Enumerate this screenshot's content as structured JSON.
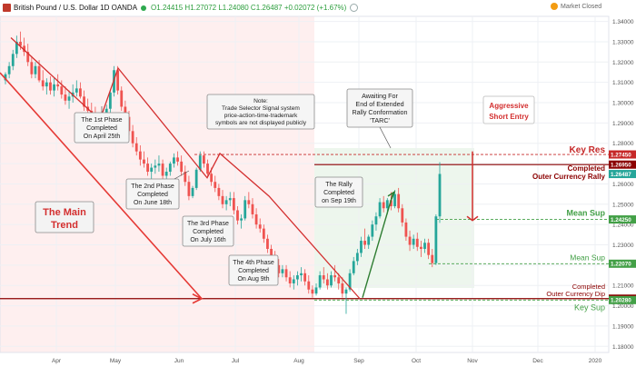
{
  "header": {
    "symbol": "British Pound / U.S. Dollar  1D  OANDA",
    "ohlc": "O1.24415  H1.27072  L1.24080  C1.26487  +0.02072 (+1.67%)",
    "market_status": "Market Closed"
  },
  "colors": {
    "bull": "#26a69a",
    "bear": "#ef5350",
    "trend_line": "#e53935",
    "support_green": "#43a047",
    "resistance_red": "#c62828",
    "dark_red": "#8b0000"
  },
  "chart_data": {
    "type": "candlestick",
    "x_tick_labels": [
      "Apr",
      "May",
      "Jun",
      "Jul",
      "Aug",
      "Sep",
      "Oct",
      "Nov",
      "Dec",
      "2020"
    ],
    "y_ticks": [
      "1.34000",
      "1.33000",
      "1.32000",
      "1.31000",
      "1.30000",
      "1.29000",
      "1.28000",
      "1.27000",
      "1.26000",
      "1.25000",
      "1.24000",
      "1.23000",
      "1.22000",
      "1.21000",
      "1.20000",
      "1.19000",
      "1.18000"
    ],
    "ylim": [
      1.177,
      1.3425
    ],
    "ohlc": [
      [
        1.311,
        1.315,
        1.309,
        1.314
      ],
      [
        1.314,
        1.32,
        1.312,
        1.318
      ],
      [
        1.318,
        1.326,
        1.316,
        1.324
      ],
      [
        1.324,
        1.333,
        1.322,
        1.33
      ],
      [
        1.33,
        1.335,
        1.326,
        1.328
      ],
      [
        1.328,
        1.332,
        1.323,
        1.325
      ],
      [
        1.325,
        1.329,
        1.318,
        1.32
      ],
      [
        1.32,
        1.323,
        1.312,
        1.314
      ],
      [
        1.314,
        1.32,
        1.312,
        1.318
      ],
      [
        1.318,
        1.321,
        1.31,
        1.311
      ],
      [
        1.311,
        1.316,
        1.306,
        1.308
      ],
      [
        1.308,
        1.312,
        1.304,
        1.31
      ],
      [
        1.31,
        1.313,
        1.304,
        1.306
      ],
      [
        1.306,
        1.312,
        1.303,
        1.309
      ],
      [
        1.309,
        1.314,
        1.306,
        1.308
      ],
      [
        1.308,
        1.311,
        1.302,
        1.304
      ],
      [
        1.304,
        1.308,
        1.299,
        1.301
      ],
      [
        1.301,
        1.306,
        1.297,
        1.303
      ],
      [
        1.303,
        1.309,
        1.3,
        1.305
      ],
      [
        1.305,
        1.311,
        1.303,
        1.307
      ],
      [
        1.307,
        1.31,
        1.302,
        1.303
      ],
      [
        1.303,
        1.306,
        1.296,
        1.298
      ],
      [
        1.298,
        1.302,
        1.294,
        1.296
      ],
      [
        1.296,
        1.3,
        1.291,
        1.293
      ],
      [
        1.293,
        1.298,
        1.289,
        1.29
      ],
      [
        1.29,
        1.295,
        1.286,
        1.288
      ],
      [
        1.288,
        1.293,
        1.286,
        1.291
      ],
      [
        1.291,
        1.299,
        1.289,
        1.297
      ],
      [
        1.297,
        1.306,
        1.295,
        1.305
      ],
      [
        1.305,
        1.318,
        1.303,
        1.316
      ],
      [
        1.316,
        1.318,
        1.304,
        1.306
      ],
      [
        1.306,
        1.308,
        1.296,
        1.298
      ],
      [
        1.298,
        1.301,
        1.29,
        1.293
      ],
      [
        1.293,
        1.296,
        1.284,
        1.286
      ],
      [
        1.286,
        1.289,
        1.278,
        1.28
      ],
      [
        1.28,
        1.283,
        1.274,
        1.276
      ],
      [
        1.276,
        1.279,
        1.269,
        1.272
      ],
      [
        1.272,
        1.276,
        1.268,
        1.27
      ],
      [
        1.27,
        1.273,
        1.264,
        1.266
      ],
      [
        1.266,
        1.27,
        1.262,
        1.268
      ],
      [
        1.268,
        1.272,
        1.265,
        1.269
      ],
      [
        1.269,
        1.274,
        1.266,
        1.27
      ],
      [
        1.27,
        1.272,
        1.262,
        1.264
      ],
      [
        1.264,
        1.268,
        1.26,
        1.266
      ],
      [
        1.266,
        1.271,
        1.264,
        1.27
      ],
      [
        1.27,
        1.275,
        1.268,
        1.273
      ],
      [
        1.273,
        1.276,
        1.269,
        1.271
      ],
      [
        1.271,
        1.274,
        1.264,
        1.266
      ],
      [
        1.266,
        1.269,
        1.259,
        1.261
      ],
      [
        1.261,
        1.264,
        1.252,
        1.254
      ],
      [
        1.254,
        1.259,
        1.253,
        1.258
      ],
      [
        1.258,
        1.268,
        1.257,
        1.267
      ],
      [
        1.267,
        1.276,
        1.266,
        1.274
      ],
      [
        1.274,
        1.276,
        1.268,
        1.27
      ],
      [
        1.27,
        1.272,
        1.264,
        1.265
      ],
      [
        1.265,
        1.268,
        1.259,
        1.261
      ],
      [
        1.261,
        1.264,
        1.256,
        1.258
      ],
      [
        1.258,
        1.26,
        1.252,
        1.254
      ],
      [
        1.254,
        1.257,
        1.248,
        1.25
      ],
      [
        1.25,
        1.254,
        1.247,
        1.252
      ],
      [
        1.252,
        1.256,
        1.249,
        1.253
      ],
      [
        1.253,
        1.256,
        1.245,
        1.247
      ],
      [
        1.247,
        1.249,
        1.24,
        1.242
      ],
      [
        1.242,
        1.245,
        1.238,
        1.243
      ],
      [
        1.243,
        1.254,
        1.242,
        1.252
      ],
      [
        1.252,
        1.256,
        1.248,
        1.25
      ],
      [
        1.25,
        1.253,
        1.243,
        1.245
      ],
      [
        1.245,
        1.248,
        1.238,
        1.24
      ],
      [
        1.24,
        1.243,
        1.236,
        1.238
      ],
      [
        1.238,
        1.24,
        1.231,
        1.233
      ],
      [
        1.233,
        1.235,
        1.226,
        1.228
      ],
      [
        1.228,
        1.23,
        1.222,
        1.224
      ],
      [
        1.224,
        1.227,
        1.218,
        1.22
      ],
      [
        1.22,
        1.223,
        1.214,
        1.216
      ],
      [
        1.216,
        1.22,
        1.214,
        1.218
      ],
      [
        1.218,
        1.22,
        1.212,
        1.214
      ],
      [
        1.214,
        1.217,
        1.209,
        1.211
      ],
      [
        1.211,
        1.215,
        1.208,
        1.213
      ],
      [
        1.213,
        1.217,
        1.21,
        1.215
      ],
      [
        1.215,
        1.219,
        1.212,
        1.216
      ],
      [
        1.216,
        1.218,
        1.21,
        1.212
      ],
      [
        1.212,
        1.215,
        1.206,
        1.208
      ],
      [
        1.208,
        1.21,
        1.204,
        1.206
      ],
      [
        1.206,
        1.211,
        1.205,
        1.209
      ],
      [
        1.209,
        1.217,
        1.208,
        1.215
      ],
      [
        1.215,
        1.219,
        1.211,
        1.213
      ],
      [
        1.213,
        1.216,
        1.208,
        1.21
      ],
      [
        1.21,
        1.217,
        1.209,
        1.215
      ],
      [
        1.215,
        1.22,
        1.212,
        1.214
      ],
      [
        1.214,
        1.216,
        1.208,
        1.211
      ],
      [
        1.211,
        1.214,
        1.204,
        1.206
      ],
      [
        1.206,
        1.209,
        1.196,
        1.208
      ],
      [
        1.208,
        1.218,
        1.207,
        1.216
      ],
      [
        1.216,
        1.224,
        1.215,
        1.222
      ],
      [
        1.222,
        1.228,
        1.22,
        1.226
      ],
      [
        1.226,
        1.234,
        1.224,
        1.232
      ],
      [
        1.232,
        1.238,
        1.228,
        1.23
      ],
      [
        1.23,
        1.235,
        1.228,
        1.234
      ],
      [
        1.234,
        1.242,
        1.232,
        1.24
      ],
      [
        1.24,
        1.246,
        1.237,
        1.244
      ],
      [
        1.244,
        1.253,
        1.243,
        1.251
      ],
      [
        1.251,
        1.254,
        1.246,
        1.248
      ],
      [
        1.248,
        1.253,
        1.245,
        1.252
      ],
      [
        1.252,
        1.256,
        1.247,
        1.249
      ],
      [
        1.249,
        1.257,
        1.248,
        1.255
      ],
      [
        1.255,
        1.258,
        1.246,
        1.248
      ],
      [
        1.248,
        1.25,
        1.239,
        1.241
      ],
      [
        1.241,
        1.243,
        1.232,
        1.234
      ],
      [
        1.234,
        1.237,
        1.227,
        1.23
      ],
      [
        1.23,
        1.235,
        1.228,
        1.233
      ],
      [
        1.233,
        1.236,
        1.227,
        1.229
      ],
      [
        1.229,
        1.232,
        1.224,
        1.228
      ],
      [
        1.228,
        1.233,
        1.226,
        1.231
      ],
      [
        1.231,
        1.233,
        1.223,
        1.225
      ],
      [
        1.225,
        1.228,
        1.219,
        1.221
      ],
      [
        1.221,
        1.245,
        1.22,
        1.244
      ],
      [
        1.244,
        1.2707,
        1.2408,
        1.2649
      ]
    ],
    "levels": [
      {
        "label": "Key Res",
        "value": 1.2745,
        "price_label": "1.27450",
        "color": "#c62828",
        "style": "dashed"
      },
      {
        "label": "Completed Outer Currency Rally",
        "value": 1.2695,
        "price_label": "1.26950",
        "color": "#8b0000",
        "style": "solid"
      },
      {
        "label": "",
        "value": 1.26487,
        "price_label": "1.26487",
        "color": "#26a69a",
        "style": "price"
      },
      {
        "label": "Mean Sup",
        "value": 1.2425,
        "price_label": "1.24250",
        "color": "#43a047",
        "style": "dashed"
      },
      {
        "label": "Mean Sup",
        "value": 1.2207,
        "price_label": "1.22070",
        "color": "#43a047",
        "style": "dashed"
      },
      {
        "label": "Completed Outer Currency Dip",
        "value": 1.2035,
        "price_label": "1.20350",
        "color": "#8b0000",
        "style": "solid"
      },
      {
        "label": "Key Sup",
        "value": 1.2028,
        "price_label": "1.20280",
        "color": "#43a047",
        "style": "dashed"
      }
    ],
    "annotations": [
      {
        "id": "phase1",
        "text": [
          "The 1st Phase",
          "Completed",
          "On April 25th"
        ]
      },
      {
        "id": "phase2",
        "text": [
          "The 2nd Phase",
          "Completed",
          "On June 18th"
        ]
      },
      {
        "id": "phase3",
        "text": [
          "The 3rd Phase",
          "Completed",
          "On July 16th"
        ]
      },
      {
        "id": "phase4",
        "text": [
          "The 4th Phase",
          "Completed",
          "On Aug 9th"
        ]
      },
      {
        "id": "rally",
        "text": [
          "The Rally",
          "Completed",
          "on Sep 19th"
        ]
      },
      {
        "id": "note",
        "text": [
          "Note:",
          "Trade Selector Signal system",
          "price-action-time-trademark",
          "symbols are not displayed publicly"
        ]
      },
      {
        "id": "tarc",
        "text": [
          "Awaiting For",
          "End of Extended",
          "Rally Conformation",
          "'TARC'"
        ]
      },
      {
        "id": "aggr",
        "text": [
          "Aggressive",
          "Short Entry"
        ]
      },
      {
        "id": "trend",
        "text": [
          "The Main",
          "Trend"
        ]
      }
    ]
  }
}
